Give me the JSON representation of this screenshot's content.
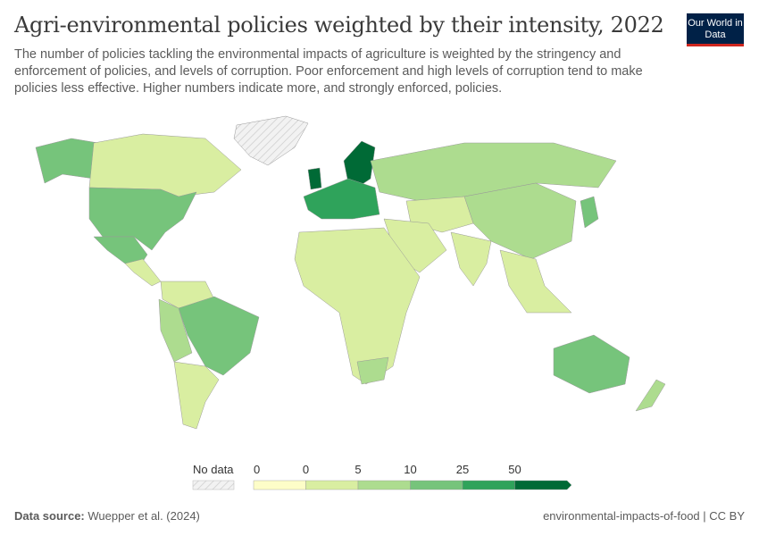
{
  "header": {
    "title": "Agri-environmental policies weighted by their intensity, 2022",
    "subtitle": "The number of policies tackling the environmental impacts of agriculture is weighted by the stringency and enforcement of policies, and levels of corruption. Poor enforcement and high levels of corruption tend to make policies less effective. Higher numbers indicate more, and strongly enforced, policies.",
    "logo": "Our World in Data"
  },
  "legend": {
    "no_data_label": "No data",
    "ticks": [
      "0",
      "0",
      "5",
      "10",
      "25",
      "50"
    ],
    "colors": [
      "#fdfdc8",
      "#d9eea1",
      "#addc8f",
      "#76c47b",
      "#2fa35b",
      "#006a36"
    ],
    "no_data_color": "#e8e8e8"
  },
  "footer": {
    "source_label": "Data source:",
    "source": "Wuepper et al. (2024)",
    "right": "environmental-impacts-of-food | CC BY"
  }
}
